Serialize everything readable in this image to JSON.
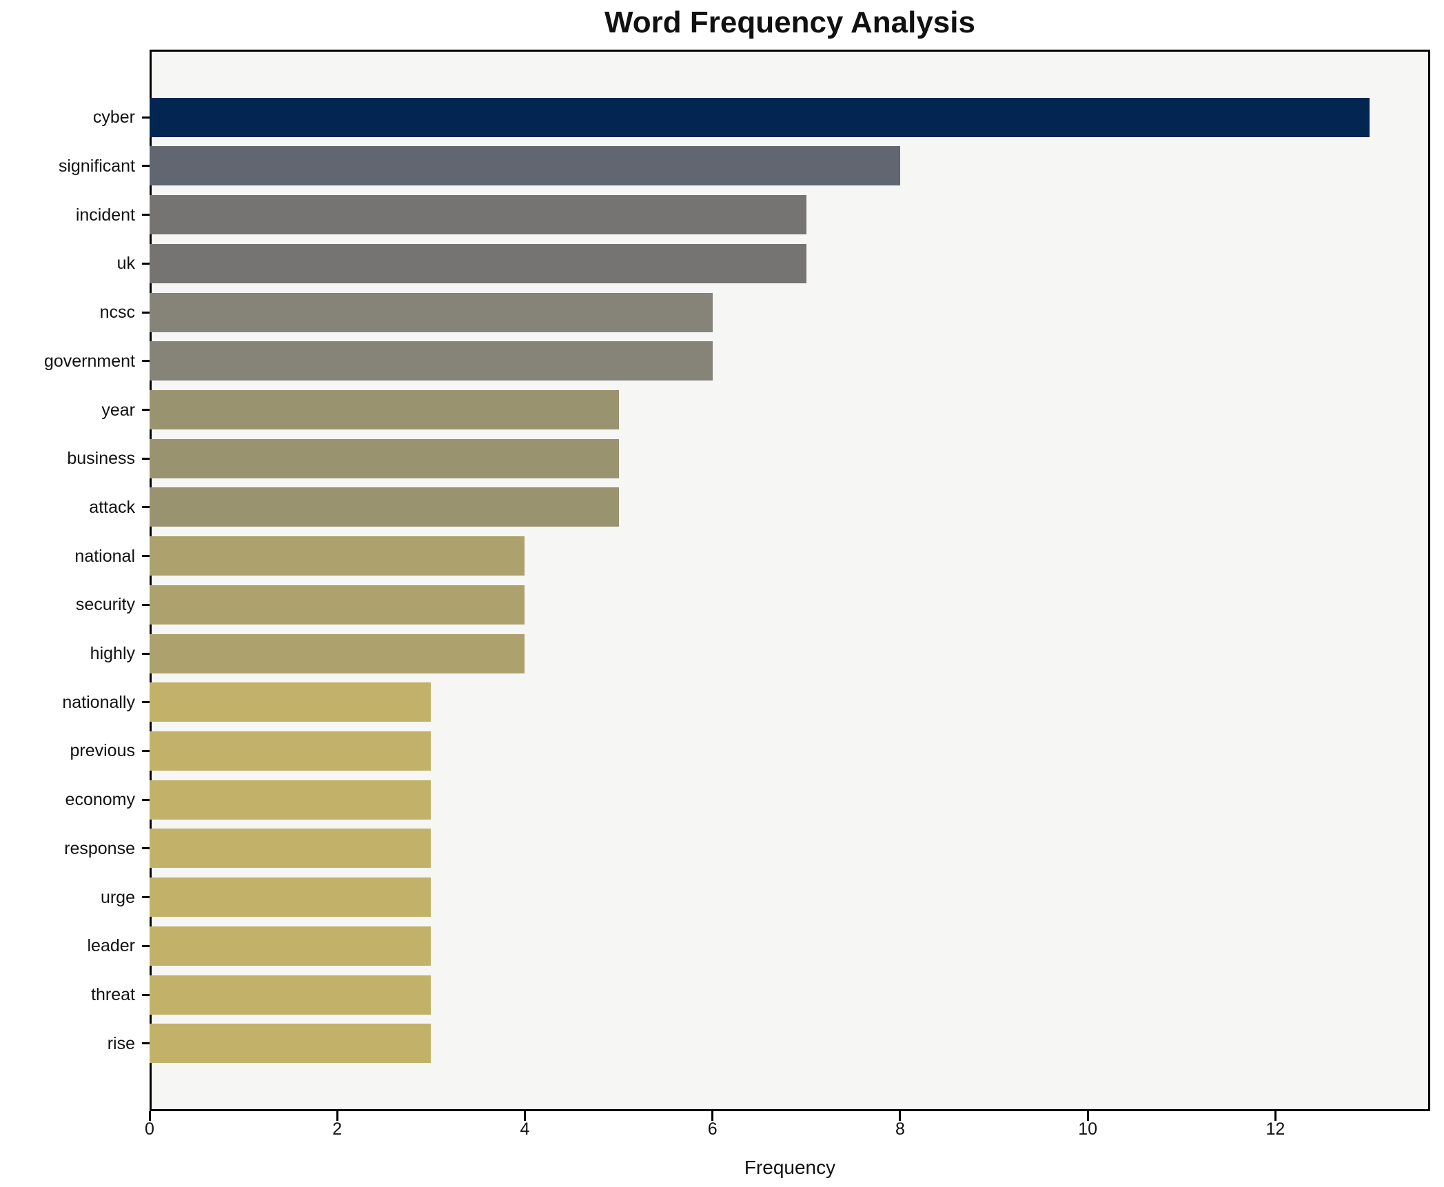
{
  "title": "Word Frequency Analysis",
  "colors": {
    "page_bg": "#ffffff",
    "plot_bg": "#f6f6f5",
    "frame": "#000000",
    "text": "#111111"
  },
  "chart_data": {
    "type": "bar",
    "orientation": "horizontal",
    "title": "Word Frequency Analysis",
    "xlabel": "Frequency",
    "ylabel": "",
    "grid": false,
    "legend": null,
    "xlim": [
      0,
      13.65
    ],
    "x_ticks": [
      0,
      2,
      4,
      6,
      8,
      10,
      12
    ],
    "categories": [
      "cyber",
      "significant",
      "incident",
      "uk",
      "ncsc",
      "government",
      "year",
      "business",
      "attack",
      "national",
      "security",
      "highly",
      "nationally",
      "previous",
      "economy",
      "response",
      "urge",
      "leader",
      "threat",
      "rise"
    ],
    "values": [
      13,
      8,
      7,
      7,
      6,
      6,
      5,
      5,
      5,
      4,
      4,
      4,
      3,
      3,
      3,
      3,
      3,
      3,
      3,
      3
    ],
    "bar_colors": [
      "#032551",
      "#616671",
      "#757473",
      "#757473",
      "#868379",
      "#868379",
      "#999370",
      "#999370",
      "#999370",
      "#ada26d",
      "#ada26d",
      "#ada26d",
      "#c2b168",
      "#c2b168",
      "#c2b168",
      "#c2b168",
      "#c2b168",
      "#c2b168",
      "#c2b168",
      "#c2b168"
    ]
  }
}
